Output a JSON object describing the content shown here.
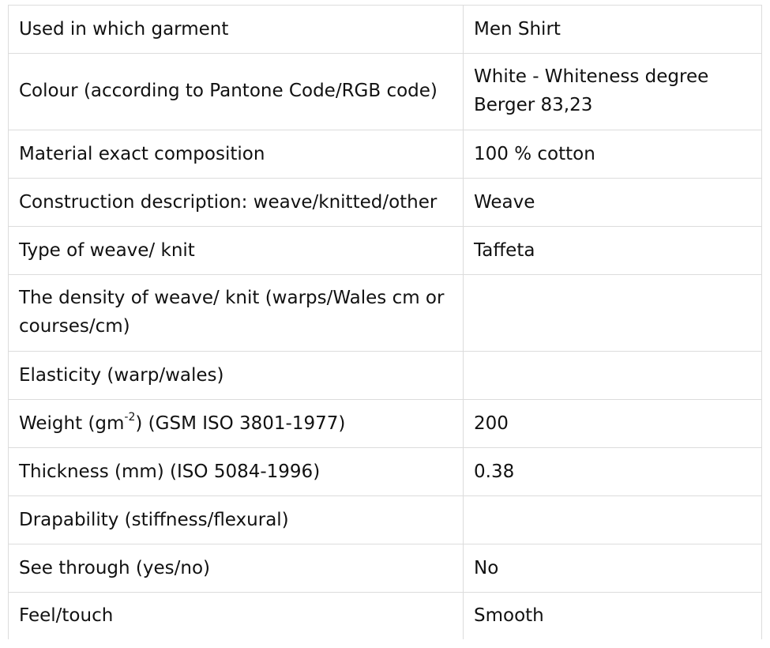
{
  "rows": [
    {
      "property": "Used in which garment",
      "value": "Men Shirt"
    },
    {
      "property": "Colour (according to Pantone Code/RGB code)",
      "value": "White - Whiteness degree Berger 83,23"
    },
    {
      "property": "Material exact composition",
      "value": "100 % cotton"
    },
    {
      "property": "Construction description: weave/knitted/other",
      "value": "Weave"
    },
    {
      "property": "Type of weave/ knit",
      "value": "Taffeta"
    },
    {
      "property": "The density of weave/ knit (warps/Wales cm or courses/cm)",
      "value": ""
    },
    {
      "property": "Elasticity (warp/wales)",
      "value": ""
    },
    {
      "property_prefix": "Weight (gm",
      "property_sup": "-2",
      "property_suffix": ") (GSM ISO 3801-1977)",
      "value": "200"
    },
    {
      "property": "Thickness (mm) (ISO 5084-1996)",
      "value": "0.38"
    },
    {
      "property": "Drapability (stiffness/flexural)",
      "value": ""
    },
    {
      "property": "See through (yes/no)",
      "value": "No"
    },
    {
      "property": "Feel/touch",
      "value": "Smooth"
    }
  ]
}
